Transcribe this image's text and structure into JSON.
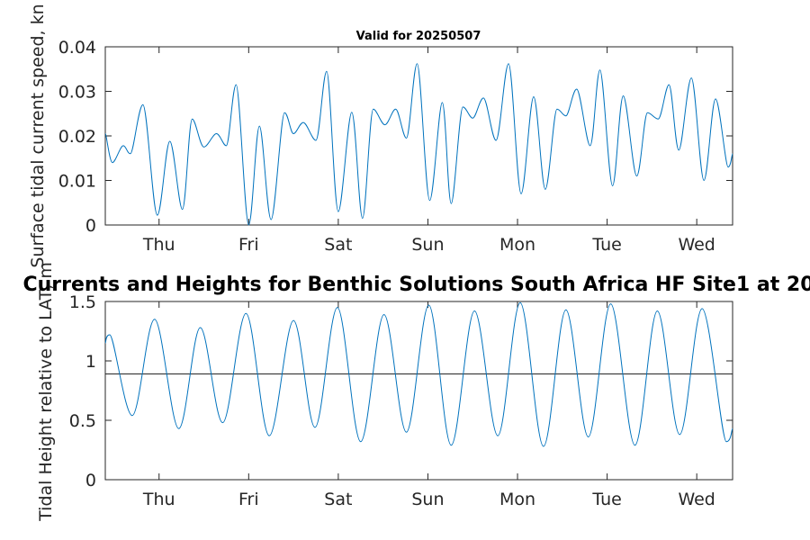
{
  "chart_data": [
    {
      "type": "line",
      "title": "Valid for 20250507",
      "ylabel": "Surface tidal current speed, kn",
      "xlim": [
        0,
        7.0
      ],
      "ylim": [
        0,
        0.04
      ],
      "yticks": [
        0,
        0.01,
        0.02,
        0.03,
        0.04
      ],
      "ytick_labels": [
        "0",
        "0.01",
        "0.02",
        "0.03",
        "0.04"
      ],
      "xticks": [
        0.6,
        1.6,
        2.6,
        3.6,
        4.6,
        5.6,
        6.6
      ],
      "xtick_labels": [
        "Thu",
        "Fri",
        "Sat",
        "Sun",
        "Mon",
        "Tue",
        "Wed"
      ],
      "color": "#0072BD",
      "series": [
        {
          "x": [
            0.0,
            0.08,
            0.2,
            0.28,
            0.42,
            0.58,
            0.72,
            0.86,
            0.97,
            1.1,
            1.24,
            1.35,
            1.46,
            1.6,
            1.72,
            1.85,
            2.0,
            2.1,
            2.21,
            2.35,
            2.47,
            2.6,
            2.75,
            2.87,
            2.99,
            3.12,
            3.24,
            3.36,
            3.48,
            3.62,
            3.76,
            3.86,
            3.99,
            4.1,
            4.22,
            4.36,
            4.5,
            4.64,
            4.78,
            4.91,
            5.04,
            5.14,
            5.26,
            5.41,
            5.52,
            5.66,
            5.78,
            5.93,
            6.05,
            6.17,
            6.29,
            6.4,
            6.54,
            6.68,
            6.81,
            6.95,
            7.0
          ],
          "y": [
            0.0205,
            0.014,
            0.0178,
            0.016,
            0.027,
            0.0022,
            0.0188,
            0.0035,
            0.0238,
            0.0175,
            0.0205,
            0.0178,
            0.0315,
            0.0,
            0.0222,
            0.0012,
            0.0252,
            0.0205,
            0.023,
            0.019,
            0.0345,
            0.003,
            0.0253,
            0.0015,
            0.026,
            0.0225,
            0.026,
            0.0195,
            0.0362,
            0.0055,
            0.0275,
            0.0048,
            0.0265,
            0.024,
            0.0285,
            0.019,
            0.0362,
            0.007,
            0.0288,
            0.008,
            0.026,
            0.0245,
            0.0305,
            0.0178,
            0.0348,
            0.0088,
            0.029,
            0.011,
            0.0252,
            0.0238,
            0.0315,
            0.0168,
            0.033,
            0.01,
            0.0283,
            0.013,
            0.016
          ]
        }
      ]
    },
    {
      "type": "line",
      "title": "Currents and Heights for Benthic Solutions South Africa HF Site1 at 20",
      "ylabel": "Tidal Height relative to LAT, m",
      "xlim": [
        0,
        7.0
      ],
      "ylim": [
        0,
        1.5
      ],
      "yticks": [
        0,
        0.5,
        1,
        1.5
      ],
      "ytick_labels": [
        "0",
        "0.5",
        "1",
        "1.5"
      ],
      "xticks": [
        0.6,
        1.6,
        2.6,
        3.6,
        4.6,
        5.6,
        6.6
      ],
      "xtick_labels": [
        "Thu",
        "Fri",
        "Sat",
        "Sun",
        "Mon",
        "Tue",
        "Wed"
      ],
      "hline": 0.89,
      "color": "#0072BD",
      "series": [
        {
          "x": [
            0.0,
            0.05,
            0.3,
            0.55,
            0.82,
            1.06,
            1.31,
            1.57,
            1.83,
            2.1,
            2.34,
            2.59,
            2.85,
            3.11,
            3.36,
            3.61,
            3.86,
            4.12,
            4.38,
            4.63,
            4.89,
            5.14,
            5.39,
            5.64,
            5.91,
            6.16,
            6.41,
            6.66,
            6.93,
            7.0
          ],
          "y": [
            1.15,
            1.22,
            0.54,
            1.35,
            0.43,
            1.28,
            0.48,
            1.4,
            0.37,
            1.34,
            0.44,
            1.45,
            0.32,
            1.39,
            0.4,
            1.47,
            0.29,
            1.42,
            0.37,
            1.49,
            0.28,
            1.43,
            0.36,
            1.48,
            0.29,
            1.42,
            0.38,
            1.44,
            0.32,
            0.43
          ]
        }
      ]
    }
  ]
}
